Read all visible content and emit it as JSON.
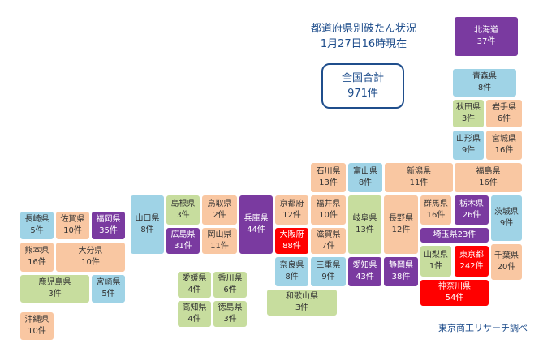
{
  "title": {
    "line1": "都道府県別破たん状況",
    "line2": "1月27日16時現在"
  },
  "total": {
    "label": "全国合計",
    "value": "971件"
  },
  "source": "東京商工リサーチ調べ",
  "colors": {
    "orange": "#f9c7a2",
    "blue": "#9fd3e6",
    "green": "#c7dd9e",
    "purple": "#7a3aa0",
    "red": "#ff0000"
  },
  "prefectures": [
    {
      "name": "北海道",
      "count": "37件"
    },
    {
      "name": "青森県",
      "count": "8件"
    },
    {
      "name": "秋田県",
      "count": "3件"
    },
    {
      "name": "岩手県",
      "count": "6件"
    },
    {
      "name": "山形県",
      "count": "9件"
    },
    {
      "name": "宮城県",
      "count": "16件"
    },
    {
      "name": "福島県",
      "count": "16件"
    },
    {
      "name": "新潟県",
      "count": "11件"
    },
    {
      "name": "富山県",
      "count": "8件"
    },
    {
      "name": "石川県",
      "count": "13件"
    },
    {
      "name": "福井県",
      "count": "10件"
    },
    {
      "name": "長野県",
      "count": "12件"
    },
    {
      "name": "岐阜県",
      "count": "13件"
    },
    {
      "name": "群馬県",
      "count": "16件"
    },
    {
      "name": "栃木県",
      "count": "26件"
    },
    {
      "name": "茨城県",
      "count": "9件"
    },
    {
      "name": "埼玉県",
      "count": "23件"
    },
    {
      "name": "山梨県",
      "count": "1件"
    },
    {
      "name": "東京都",
      "count": "242件"
    },
    {
      "name": "千葉県",
      "count": "20件"
    },
    {
      "name": "神奈川県",
      "count": "54件"
    },
    {
      "name": "静岡県",
      "count": "38件"
    },
    {
      "name": "愛知県",
      "count": "43件"
    },
    {
      "name": "三重県",
      "count": "9件"
    },
    {
      "name": "滋賀県",
      "count": "7件"
    },
    {
      "name": "京都府",
      "count": "12件"
    },
    {
      "name": "大阪府",
      "count": "88件"
    },
    {
      "name": "奈良県",
      "count": "8件"
    },
    {
      "name": "和歌山県",
      "count": "3件"
    },
    {
      "name": "兵庫県",
      "count": "44件"
    },
    {
      "name": "鳥取県",
      "count": "2件"
    },
    {
      "name": "島根県",
      "count": "3件"
    },
    {
      "name": "岡山県",
      "count": "11件"
    },
    {
      "name": "広島県",
      "count": "31件"
    },
    {
      "name": "山口県",
      "count": "8件"
    },
    {
      "name": "香川県",
      "count": "6件"
    },
    {
      "name": "愛媛県",
      "count": "4件"
    },
    {
      "name": "徳島県",
      "count": "3件"
    },
    {
      "name": "高知県",
      "count": "4件"
    },
    {
      "name": "福岡県",
      "count": "35件"
    },
    {
      "name": "佐賀県",
      "count": "10件"
    },
    {
      "name": "長崎県",
      "count": "5件"
    },
    {
      "name": "大分県",
      "count": "10件"
    },
    {
      "name": "熊本県",
      "count": "16件"
    },
    {
      "name": "宮崎県",
      "count": "5件"
    },
    {
      "name": "鹿児島県",
      "count": "3件"
    },
    {
      "name": "沖縄県",
      "count": "10件"
    }
  ]
}
